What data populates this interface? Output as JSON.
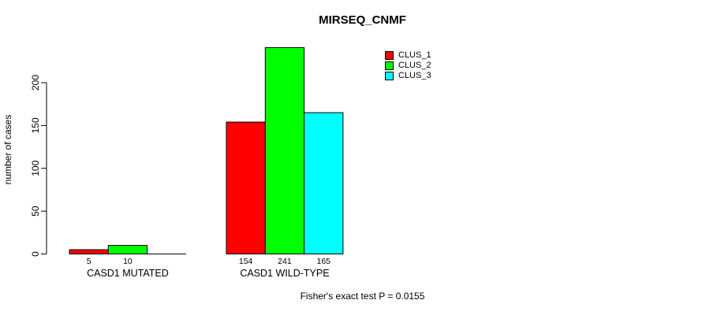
{
  "chart_data": {
    "type": "bar",
    "title": "MIRSEQ_CNMF",
    "xlabel": "",
    "ylabel": "number of cases",
    "ylim": [
      0,
      200
    ],
    "yticks": [
      0,
      50,
      100,
      150,
      200
    ],
    "grid": false,
    "background_color": "#ffffff",
    "axis_color": "#000000",
    "categories": [
      "CASD1 MUTATED",
      "CASD1 WILD-TYPE"
    ],
    "series": [
      {
        "name": "CLUS_1",
        "color": "#ff0000",
        "values": [
          5,
          154
        ]
      },
      {
        "name": "CLUS_2",
        "color": "#00ff00",
        "values": [
          10,
          241
        ]
      },
      {
        "name": "CLUS_3",
        "color": "#00ffff",
        "values": [
          0,
          165
        ]
      }
    ],
    "bar_value_labels": [
      [
        "5",
        "10",
        ""
      ],
      [
        "154",
        "241",
        "165"
      ]
    ],
    "legend": {
      "position": "top-right",
      "entries": [
        "CLUS_1",
        "CLUS_2",
        "CLUS_3"
      ]
    },
    "annotation": "Fisher's exact test P = 0.0155"
  }
}
